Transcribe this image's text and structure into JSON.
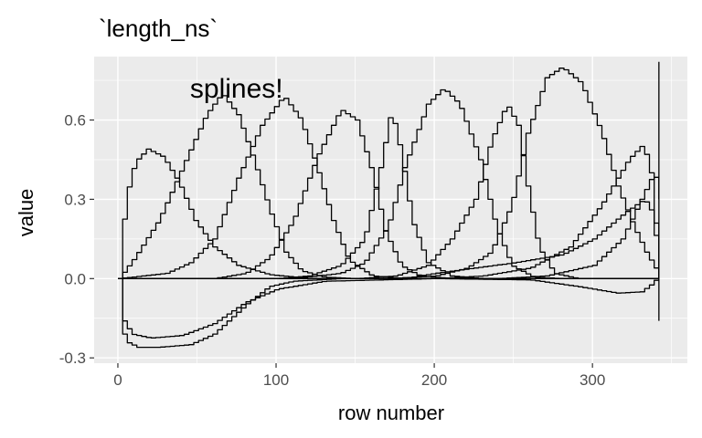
{
  "chart_data": {
    "type": "line",
    "title": "`length_ns`",
    "xlabel": "row number",
    "ylabel": "value",
    "xlim": [
      -15,
      360
    ],
    "ylim": [
      -0.32,
      0.84
    ],
    "x_ticks": [
      0,
      100,
      200,
      300
    ],
    "x_tick_labels": [
      "0",
      "100",
      "200",
      "300"
    ],
    "y_ticks": [
      -0.3,
      0.0,
      0.3,
      0.6
    ],
    "y_tick_labels": [
      "-0.3",
      "0.0",
      "0.3",
      "0.6"
    ],
    "grid": true,
    "legend": "none",
    "annotation": {
      "text": "splines!",
      "x": 75,
      "y": 0.72
    },
    "background_color": "#ebebeb",
    "grid_color": "#ffffff",
    "line_color": "#000000",
    "series": [
      {
        "points": [
          [
            0,
            0
          ],
          [
            1,
            -0.18
          ],
          [
            5,
            -0.24
          ],
          [
            12,
            -0.26
          ],
          [
            25,
            -0.26
          ],
          [
            45,
            -0.25
          ],
          [
            60,
            -0.21
          ],
          [
            80,
            -0.1
          ],
          [
            95,
            -0.03
          ],
          [
            110,
            -0.01
          ],
          [
            140,
            0
          ],
          [
            342,
            0
          ]
        ]
      },
      {
        "points": [
          [
            0,
            0
          ],
          [
            2,
            -0.15
          ],
          [
            8,
            -0.21
          ],
          [
            20,
            -0.225
          ],
          [
            40,
            -0.215
          ],
          [
            60,
            -0.17
          ],
          [
            80,
            -0.09
          ],
          [
            100,
            -0.04
          ],
          [
            130,
            -0.01
          ],
          [
            200,
            0
          ],
          [
            260,
            -0.005
          ],
          [
            290,
            -0.03
          ],
          [
            315,
            -0.055
          ],
          [
            330,
            -0.05
          ],
          [
            337,
            -0.02
          ],
          [
            340,
            0
          ],
          [
            342,
            0
          ]
        ]
      },
      {
        "points": [
          [
            0,
            0
          ],
          [
            4,
            0.3
          ],
          [
            10,
            0.44
          ],
          [
            18,
            0.49
          ],
          [
            28,
            0.46
          ],
          [
            38,
            0.36
          ],
          [
            48,
            0.22
          ],
          [
            60,
            0.12
          ],
          [
            75,
            0.05
          ],
          [
            95,
            0.015
          ],
          [
            120,
            0
          ],
          [
            342,
            0
          ]
        ]
      },
      {
        "points": [
          [
            0,
            0
          ],
          [
            10,
            0.08
          ],
          [
            25,
            0.22
          ],
          [
            40,
            0.42
          ],
          [
            55,
            0.62
          ],
          [
            65,
            0.7
          ],
          [
            75,
            0.62
          ],
          [
            85,
            0.45
          ],
          [
            95,
            0.26
          ],
          [
            105,
            0.1
          ],
          [
            115,
            0.03
          ],
          [
            130,
            0.005
          ],
          [
            150,
            0
          ],
          [
            342,
            0
          ]
        ]
      },
      {
        "points": [
          [
            0,
            0
          ],
          [
            30,
            0.02
          ],
          [
            45,
            0.06
          ],
          [
            60,
            0.15
          ],
          [
            75,
            0.38
          ],
          [
            90,
            0.58
          ],
          [
            104,
            0.69
          ],
          [
            115,
            0.6
          ],
          [
            125,
            0.42
          ],
          [
            135,
            0.22
          ],
          [
            145,
            0.07
          ],
          [
            160,
            0.01
          ],
          [
            180,
            0
          ],
          [
            342,
            0
          ]
        ]
      },
      {
        "points": [
          [
            0,
            0
          ],
          [
            60,
            0
          ],
          [
            80,
            0.02
          ],
          [
            95,
            0.08
          ],
          [
            110,
            0.22
          ],
          [
            125,
            0.46
          ],
          [
            140,
            0.64
          ],
          [
            150,
            0.6
          ],
          [
            160,
            0.4
          ],
          [
            168,
            0.18
          ],
          [
            178,
            0.05
          ],
          [
            190,
            0.01
          ],
          [
            210,
            0
          ],
          [
            342,
            0
          ]
        ]
      },
      {
        "points": [
          [
            0,
            0
          ],
          [
            100,
            0
          ],
          [
            120,
            0.01
          ],
          [
            140,
            0.05
          ],
          [
            155,
            0.15
          ],
          [
            165,
            0.42
          ],
          [
            172,
            0.64
          ],
          [
            178,
            0.48
          ],
          [
            185,
            0.22
          ],
          [
            195,
            0.06
          ],
          [
            210,
            0.01
          ],
          [
            230,
            0
          ],
          [
            342,
            0
          ]
        ]
      },
      {
        "points": [
          [
            0,
            0
          ],
          [
            110,
            0
          ],
          [
            140,
            0.02
          ],
          [
            155,
            0.06
          ],
          [
            170,
            0.2
          ],
          [
            180,
            0.42
          ],
          [
            195,
            0.66
          ],
          [
            205,
            0.72
          ],
          [
            215,
            0.66
          ],
          [
            228,
            0.45
          ],
          [
            238,
            0.2
          ],
          [
            248,
            0.05
          ],
          [
            262,
            0.005
          ],
          [
            280,
            0
          ],
          [
            342,
            0
          ]
        ]
      },
      {
        "points": [
          [
            0,
            0
          ],
          [
            150,
            0
          ],
          [
            175,
            0.01
          ],
          [
            195,
            0.05
          ],
          [
            210,
            0.15
          ],
          [
            225,
            0.3
          ],
          [
            235,
            0.52
          ],
          [
            245,
            0.66
          ],
          [
            252,
            0.58
          ],
          [
            258,
            0.35
          ],
          [
            265,
            0.12
          ],
          [
            275,
            0.02
          ],
          [
            290,
            0
          ],
          [
            342,
            0
          ]
        ]
      },
      {
        "points": [
          [
            0,
            0
          ],
          [
            170,
            0
          ],
          [
            200,
            0.01
          ],
          [
            220,
            0.04
          ],
          [
            235,
            0.1
          ],
          [
            248,
            0.28
          ],
          [
            258,
            0.55
          ],
          [
            270,
            0.76
          ],
          [
            280,
            0.8
          ],
          [
            292,
            0.74
          ],
          [
            305,
            0.55
          ],
          [
            315,
            0.35
          ],
          [
            325,
            0.2
          ],
          [
            333,
            0.1
          ],
          [
            338,
            0.05
          ],
          [
            341,
            0.02
          ],
          [
            342,
            0
          ]
        ]
      },
      {
        "points": [
          [
            0,
            0
          ],
          [
            180,
            0
          ],
          [
            200,
            0.02
          ],
          [
            225,
            0.04
          ],
          [
            250,
            0.06
          ],
          [
            280,
            0.09
          ],
          [
            300,
            0.15
          ],
          [
            320,
            0.25
          ],
          [
            332,
            0.3
          ],
          [
            337,
            0.25
          ],
          [
            340,
            0.12
          ],
          [
            342,
            0
          ]
        ]
      },
      {
        "points": [
          [
            0,
            0
          ],
          [
            200,
            0
          ],
          [
            230,
            0.01
          ],
          [
            260,
            0.04
          ],
          [
            285,
            0.12
          ],
          [
            305,
            0.28
          ],
          [
            322,
            0.45
          ],
          [
            330,
            0.5
          ],
          [
            335,
            0.45
          ],
          [
            338,
            0.3
          ],
          [
            340,
            0.12
          ],
          [
            342,
            0
          ]
        ]
      },
      {
        "points": [
          [
            0,
            0
          ],
          [
            240,
            0
          ],
          [
            270,
            0.01
          ],
          [
            300,
            0.05
          ],
          [
            318,
            0.15
          ],
          [
            330,
            0.3
          ],
          [
            338,
            0.4
          ],
          [
            341,
            0.35
          ],
          [
            342,
            0.3
          ]
        ]
      },
      {
        "points": [
          [
            342,
            -0.16
          ],
          [
            342,
            0.82
          ]
        ]
      }
    ]
  }
}
